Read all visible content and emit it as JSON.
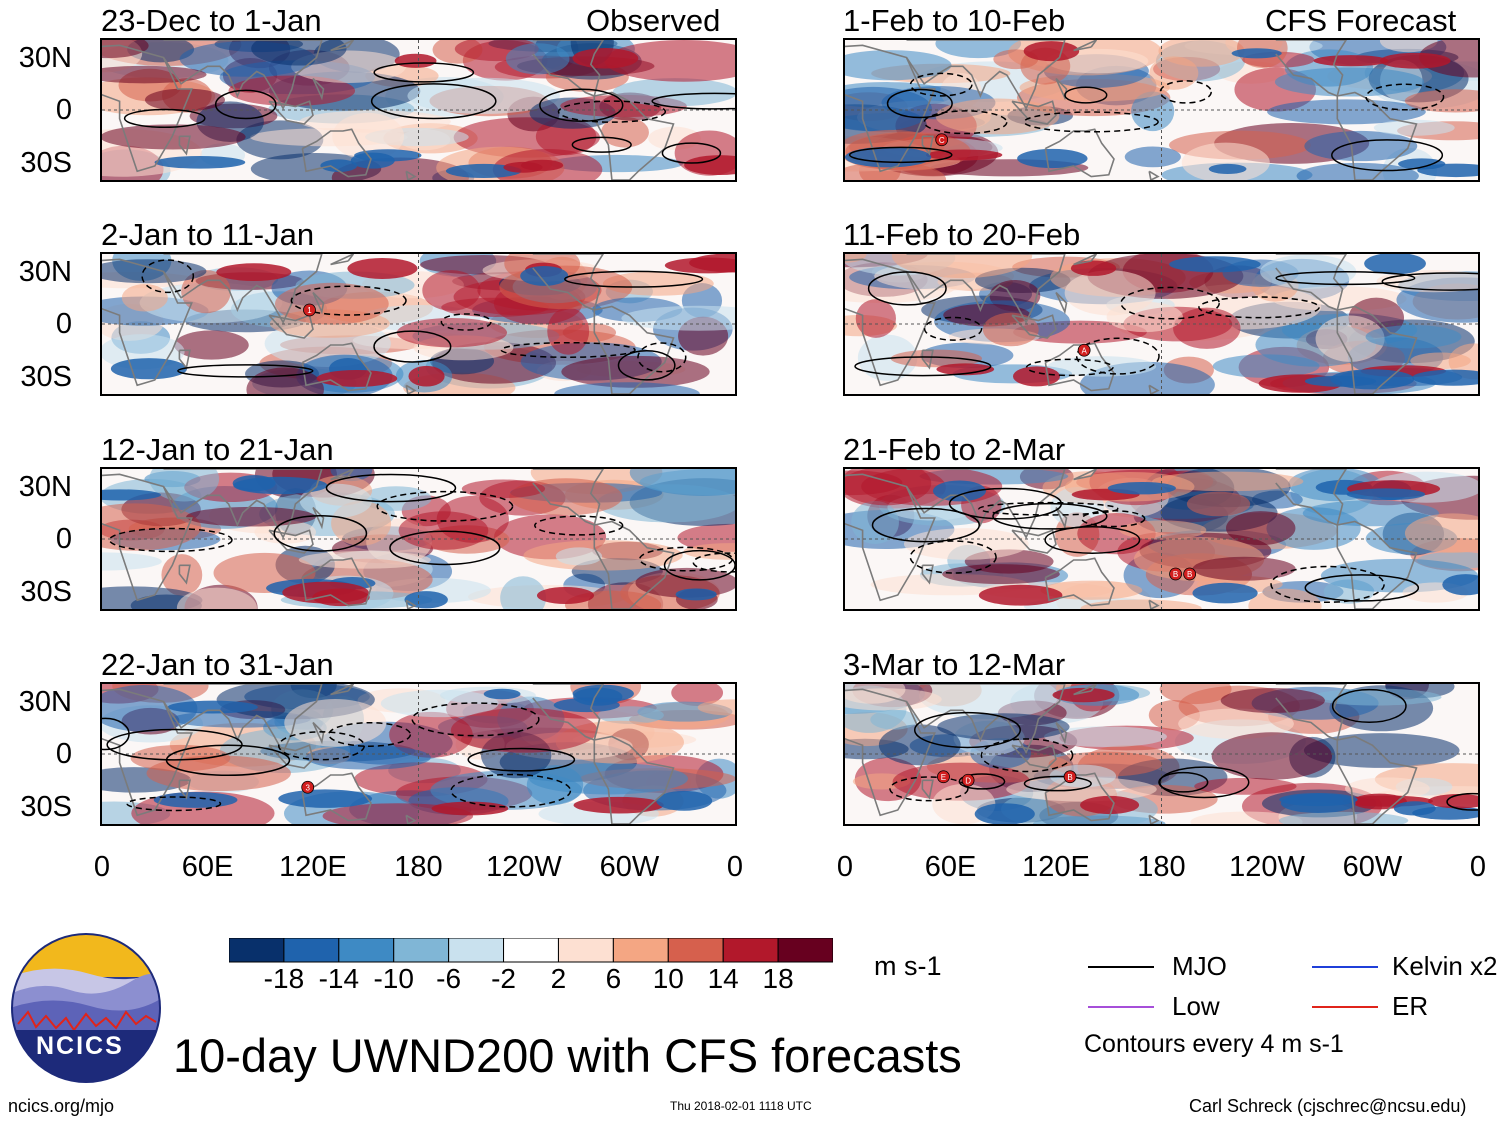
{
  "title": "10-day UWND200 with CFS forecasts",
  "footer": {
    "url": "ncics.org/mjo",
    "timestamp": "Thu 2018-02-01 1118 UTC",
    "author": "Carl Schreck (cjschrec@ncsu.edu)"
  },
  "logo": {
    "text": "NCICS"
  },
  "column_labels": {
    "observed": "Observed",
    "forecast": "CFS Forecast"
  },
  "chart_data": {
    "type": "heatmap",
    "variable": "200-hPa zonal wind anomaly",
    "units": "m s-1",
    "yticks": [
      "30N",
      "0",
      "30S"
    ],
    "xticks": [
      "0",
      "60E",
      "120E",
      "180",
      "120W",
      "60W",
      "0"
    ],
    "x_range_deg": [
      0,
      360
    ],
    "y_range_deg": [
      -40,
      40
    ],
    "contour_interval": "Contours every 4 m s-1",
    "colorbar": {
      "levels": [
        -18,
        -14,
        -10,
        -6,
        -2,
        2,
        6,
        10,
        14,
        18
      ],
      "labels": [
        "-18",
        "-14",
        "-10",
        "-6",
        "-2",
        "2",
        "6",
        "10",
        "14",
        "18"
      ],
      "colors": [
        "#08306b",
        "#1f63ad",
        "#3e8ac4",
        "#80b6d6",
        "#c9e1ee",
        "#ffffff",
        "#fde0d2",
        "#f4a683",
        "#d6604d",
        "#b2182b",
        "#67001f"
      ],
      "units_label": "m s-1"
    },
    "legend": [
      {
        "label": "MJO",
        "color": "#000000"
      },
      {
        "label": "Kelvin x2",
        "color": "#1f3fd9"
      },
      {
        "label": "Low",
        "color": "#a64fd9"
      },
      {
        "label": "ER",
        "color": "#e0241b"
      }
    ],
    "panels": [
      {
        "title": "23-Dec to 1-Jan",
        "column": "Observed",
        "storms": []
      },
      {
        "title": "2-Jan to 11-Jan",
        "column": "Observed",
        "storms": [
          {
            "label": "1",
            "lon": 118,
            "lat": 8
          }
        ]
      },
      {
        "title": "12-Jan to 21-Jan",
        "column": "Observed",
        "storms": []
      },
      {
        "title": "22-Jan to 31-Jan",
        "column": "Observed",
        "storms": [
          {
            "label": "3",
            "lon": 117,
            "lat": -19
          }
        ]
      },
      {
        "title": "1-Feb to 10-Feb",
        "column": "CFS Forecast",
        "storms": [
          {
            "label": "C",
            "lon": 55,
            "lat": -17
          }
        ]
      },
      {
        "title": "11-Feb to 20-Feb",
        "column": "CFS Forecast",
        "storms": [
          {
            "label": "A",
            "lon": 136,
            "lat": -15
          }
        ]
      },
      {
        "title": "21-Feb to 2-Mar",
        "column": "CFS Forecast",
        "storms": [
          {
            "label": "B",
            "lon": 188,
            "lat": -20
          },
          {
            "label": "B",
            "lon": 196,
            "lat": -20
          }
        ]
      },
      {
        "title": "3-Mar to 12-Mar",
        "column": "CFS Forecast",
        "storms": [
          {
            "label": "E",
            "lon": 56,
            "lat": -13
          },
          {
            "label": "D",
            "lon": 70,
            "lat": -15
          },
          {
            "label": "B",
            "lon": 128,
            "lat": -13
          }
        ]
      }
    ]
  }
}
